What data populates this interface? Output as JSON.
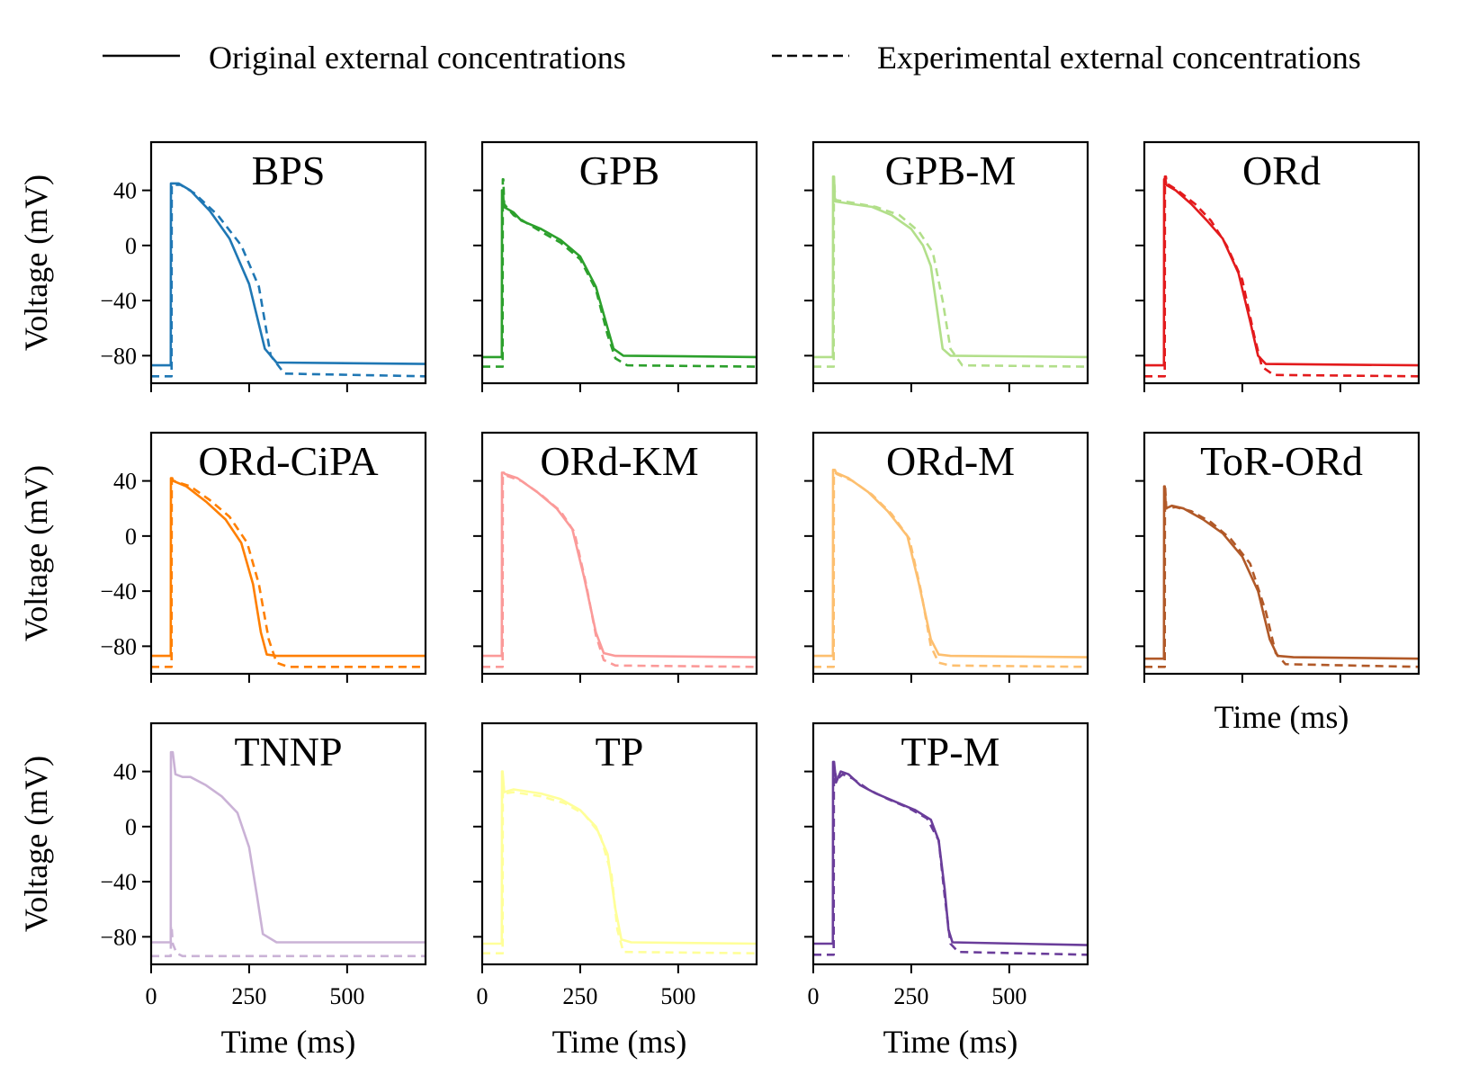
{
  "legend": {
    "solid_label": "Original external concentrations",
    "dashed_label": "Experimental external concentrations"
  },
  "axes": {
    "xlabel": "Time (ms)",
    "ylabel": "Voltage (mV)",
    "xticks": [
      0,
      250,
      500
    ],
    "yticks": [
      40,
      0,
      -40,
      -80
    ],
    "xlim": [
      0,
      700
    ],
    "ylim": [
      -100,
      75
    ]
  },
  "chart_data": {
    "type": "line",
    "series_styles": [
      {
        "name": "Original external concentrations",
        "linestyle": "solid"
      },
      {
        "name": "Experimental external concentrations",
        "linestyle": "dashed"
      }
    ],
    "panels": [
      {
        "title": "BPS",
        "color": "#1f77b4",
        "original": {
          "rest": -87,
          "upstroke_t": 50,
          "peak": 45,
          "peak_t": 70,
          "plateau": [
            [
              70,
              45
            ],
            [
              100,
              40
            ],
            [
              150,
              25
            ],
            [
              200,
              5
            ],
            [
              250,
              -28
            ],
            [
              290,
              -75
            ],
            [
              320,
              -85
            ]
          ],
          "final": -86
        },
        "experimental": {
          "rest": -95,
          "upstroke_t": 52,
          "peak": 44,
          "peak_t": 75,
          "plateau": [
            [
              75,
              44
            ],
            [
              110,
              38
            ],
            [
              170,
              22
            ],
            [
              230,
              0
            ],
            [
              275,
              -30
            ],
            [
              305,
              -80
            ],
            [
              340,
              -93
            ]
          ],
          "final": -95
        }
      },
      {
        "title": "GPB",
        "color": "#2ca02c",
        "original": {
          "rest": -81,
          "upstroke_t": 50,
          "peak": 40,
          "peak_t": 53,
          "plateau": [
            [
              55,
              28
            ],
            [
              80,
              24
            ],
            [
              100,
              18
            ],
            [
              150,
              12
            ],
            [
              200,
              4
            ],
            [
              250,
              -8
            ],
            [
              290,
              -30
            ],
            [
              320,
              -60
            ],
            [
              335,
              -75
            ],
            [
              360,
              -80
            ]
          ],
          "final": -81
        },
        "experimental": {
          "rest": -88,
          "upstroke_t": 52,
          "peak": 48,
          "peak_t": 54,
          "plateau": [
            [
              56,
              30
            ],
            [
              80,
              22
            ],
            [
              150,
              10
            ],
            [
              200,
              2
            ],
            [
              250,
              -10
            ],
            [
              290,
              -32
            ],
            [
              320,
              -65
            ],
            [
              340,
              -82
            ],
            [
              370,
              -87
            ]
          ],
          "final": -88
        }
      },
      {
        "title": "GPB-M",
        "color": "#b2df8a",
        "original": {
          "rest": -81,
          "upstroke_t": 50,
          "peak": 50,
          "peak_t": 53,
          "plateau": [
            [
              55,
              32
            ],
            [
              100,
              30
            ],
            [
              150,
              28
            ],
            [
              200,
              22
            ],
            [
              250,
              12
            ],
            [
              280,
              0
            ],
            [
              300,
              -15
            ],
            [
              315,
              -45
            ],
            [
              330,
              -75
            ],
            [
              350,
              -80
            ]
          ],
          "final": -81
        },
        "experimental": {
          "rest": -88,
          "upstroke_t": 52,
          "peak": 44,
          "peak_t": 54,
          "plateau": [
            [
              56,
              33
            ],
            [
              100,
              31
            ],
            [
              160,
              28
            ],
            [
              220,
              22
            ],
            [
              270,
              10
            ],
            [
              305,
              -5
            ],
            [
              330,
              -40
            ],
            [
              350,
              -75
            ],
            [
              380,
              -87
            ]
          ],
          "final": -88
        }
      },
      {
        "title": "ORd",
        "color": "#e31a1c",
        "original": {
          "rest": -87,
          "upstroke_t": 50,
          "peak": 48,
          "peak_t": 54,
          "plateau": [
            [
              56,
              44
            ],
            [
              80,
              40
            ],
            [
              120,
              30
            ],
            [
              160,
              18
            ],
            [
              200,
              5
            ],
            [
              240,
              -20
            ],
            [
              270,
              -55
            ],
            [
              290,
              -80
            ],
            [
              310,
              -86
            ]
          ],
          "final": -87
        },
        "experimental": {
          "rest": -95,
          "upstroke_t": 52,
          "peak": 50,
          "peak_t": 55,
          "plateau": [
            [
              57,
              45
            ],
            [
              85,
              40
            ],
            [
              130,
              30
            ],
            [
              170,
              18
            ],
            [
              210,
              0
            ],
            [
              250,
              -25
            ],
            [
              280,
              -65
            ],
            [
              300,
              -88
            ],
            [
              330,
              -94
            ]
          ],
          "final": -95
        }
      },
      {
        "title": "ORd-CiPA",
        "color": "#ff7f00",
        "original": {
          "rest": -87,
          "upstroke_t": 50,
          "peak": 42,
          "peak_t": 54,
          "plateau": [
            [
              56,
              40
            ],
            [
              90,
              36
            ],
            [
              140,
              25
            ],
            [
              190,
              12
            ],
            [
              230,
              -5
            ],
            [
              260,
              -35
            ],
            [
              280,
              -70
            ],
            [
              295,
              -86
            ],
            [
              320,
              -87
            ]
          ],
          "final": -87
        },
        "experimental": {
          "rest": -95,
          "upstroke_t": 52,
          "peak": 40,
          "peak_t": 56,
          "plateau": [
            [
              58,
              40
            ],
            [
              100,
              36
            ],
            [
              150,
              26
            ],
            [
              200,
              14
            ],
            [
              245,
              -5
            ],
            [
              275,
              -35
            ],
            [
              300,
              -75
            ],
            [
              320,
              -92
            ],
            [
              350,
              -95
            ]
          ],
          "final": -95
        }
      },
      {
        "title": "ORd-KM",
        "color": "#fb9a99",
        "original": {
          "rest": -87,
          "upstroke_t": 50,
          "peak": 46,
          "peak_t": 55,
          "plateau": [
            [
              58,
              45
            ],
            [
              90,
              42
            ],
            [
              140,
              32
            ],
            [
              190,
              20
            ],
            [
              230,
              5
            ],
            [
              260,
              -30
            ],
            [
              290,
              -70
            ],
            [
              310,
              -85
            ],
            [
              340,
              -87
            ]
          ],
          "final": -88
        },
        "experimental": {
          "rest": -95,
          "upstroke_t": 52,
          "peak": 44,
          "peak_t": 56,
          "plateau": [
            [
              60,
              44
            ],
            [
              100,
              40
            ],
            [
              150,
              30
            ],
            [
              200,
              18
            ],
            [
              235,
              3
            ],
            [
              265,
              -35
            ],
            [
              290,
              -72
            ],
            [
              310,
              -90
            ],
            [
              340,
              -94
            ]
          ],
          "final": -95
        }
      },
      {
        "title": "ORd-M",
        "color": "#fdbf6f",
        "original": {
          "rest": -87,
          "upstroke_t": 50,
          "peak": 48,
          "peak_t": 55,
          "plateau": [
            [
              58,
              46
            ],
            [
              90,
              42
            ],
            [
              140,
              32
            ],
            [
              190,
              18
            ],
            [
              240,
              0
            ],
            [
              270,
              -35
            ],
            [
              300,
              -75
            ],
            [
              320,
              -86
            ],
            [
              350,
              -87
            ]
          ],
          "final": -88
        },
        "experimental": {
          "rest": -95,
          "upstroke_t": 52,
          "peak": 46,
          "peak_t": 56,
          "plateau": [
            [
              60,
              45
            ],
            [
              100,
              40
            ],
            [
              150,
              30
            ],
            [
              200,
              16
            ],
            [
              245,
              -2
            ],
            [
              275,
              -40
            ],
            [
              300,
              -80
            ],
            [
              320,
              -92
            ],
            [
              350,
              -94
            ]
          ],
          "final": -95
        }
      },
      {
        "title": "ToR-ORd",
        "color": "#b15928",
        "original": {
          "rest": -89,
          "upstroke_t": 50,
          "peak": 36,
          "peak_t": 52,
          "plateau": [
            [
              55,
              20
            ],
            [
              70,
              22
            ],
            [
              100,
              20
            ],
            [
              150,
              12
            ],
            [
              200,
              2
            ],
            [
              250,
              -15
            ],
            [
              290,
              -40
            ],
            [
              320,
              -75
            ],
            [
              340,
              -87
            ],
            [
              380,
              -88
            ]
          ],
          "final": -89
        },
        "experimental": {
          "rest": -95,
          "upstroke_t": 52,
          "peak": 36,
          "peak_t": 53,
          "plateau": [
            [
              56,
              20
            ],
            [
              80,
              21
            ],
            [
              120,
              18
            ],
            [
              170,
              10
            ],
            [
              220,
              -2
            ],
            [
              270,
              -20
            ],
            [
              310,
              -55
            ],
            [
              335,
              -85
            ],
            [
              360,
              -93
            ]
          ],
          "final": -95
        }
      },
      {
        "title": "TNNP",
        "color": "#cab2d6",
        "original": {
          "rest": -84,
          "upstroke_t": 50,
          "peak": 54,
          "peak_t": 55,
          "plateau": [
            [
              62,
              38
            ],
            [
              80,
              36
            ],
            [
              100,
              36
            ],
            [
              140,
              30
            ],
            [
              180,
              22
            ],
            [
              220,
              10
            ],
            [
              250,
              -15
            ],
            [
              270,
              -50
            ],
            [
              285,
              -78
            ],
            [
              320,
              -84
            ]
          ],
          "final": -84
        },
        "experimental": {
          "rest": -94,
          "upstroke_t": 50,
          "peak": -72,
          "peak_t": 52,
          "plateau": [
            [
              55,
              -85
            ],
            [
              65,
              -92
            ],
            [
              80,
              -94
            ]
          ],
          "final": -94
        }
      },
      {
        "title": "TP",
        "color": "#ffff99",
        "original": {
          "rest": -85,
          "upstroke_t": 50,
          "peak": 40,
          "peak_t": 52,
          "plateau": [
            [
              56,
              25
            ],
            [
              80,
              27
            ],
            [
              150,
              24
            ],
            [
              200,
              20
            ],
            [
              250,
              12
            ],
            [
              290,
              0
            ],
            [
              320,
              -20
            ],
            [
              340,
              -60
            ],
            [
              355,
              -82
            ],
            [
              380,
              -84
            ]
          ],
          "final": -85
        },
        "experimental": {
          "rest": -92,
          "upstroke_t": 52,
          "peak": 36,
          "peak_t": 53,
          "plateau": [
            [
              56,
              24
            ],
            [
              80,
              25
            ],
            [
              150,
              22
            ],
            [
              210,
              17
            ],
            [
              260,
              9
            ],
            [
              300,
              -5
            ],
            [
              330,
              -35
            ],
            [
              345,
              -75
            ],
            [
              360,
              -91
            ]
          ],
          "final": -92
        }
      },
      {
        "title": "TP-M",
        "color": "#6a3d9a",
        "original": {
          "rest": -85,
          "upstroke_t": 50,
          "peak": 47,
          "peak_t": 53,
          "plateau": [
            [
              58,
              32
            ],
            [
              70,
              40
            ],
            [
              90,
              38
            ],
            [
              120,
              30
            ],
            [
              160,
              24
            ],
            [
              210,
              18
            ],
            [
              260,
              12
            ],
            [
              300,
              5
            ],
            [
              320,
              -10
            ],
            [
              335,
              -45
            ],
            [
              345,
              -75
            ],
            [
              355,
              -84
            ]
          ],
          "final": -86
        },
        "experimental": {
          "rest": -93,
          "upstroke_t": 52,
          "peak": 40,
          "peak_t": 55,
          "plateau": [
            [
              60,
              34
            ],
            [
              75,
              38
            ],
            [
              100,
              35
            ],
            [
              140,
              27
            ],
            [
              190,
              20
            ],
            [
              240,
              14
            ],
            [
              290,
              6
            ],
            [
              320,
              -10
            ],
            [
              335,
              -50
            ],
            [
              350,
              -85
            ],
            [
              370,
              -91
            ]
          ],
          "final": -93
        }
      }
    ]
  }
}
